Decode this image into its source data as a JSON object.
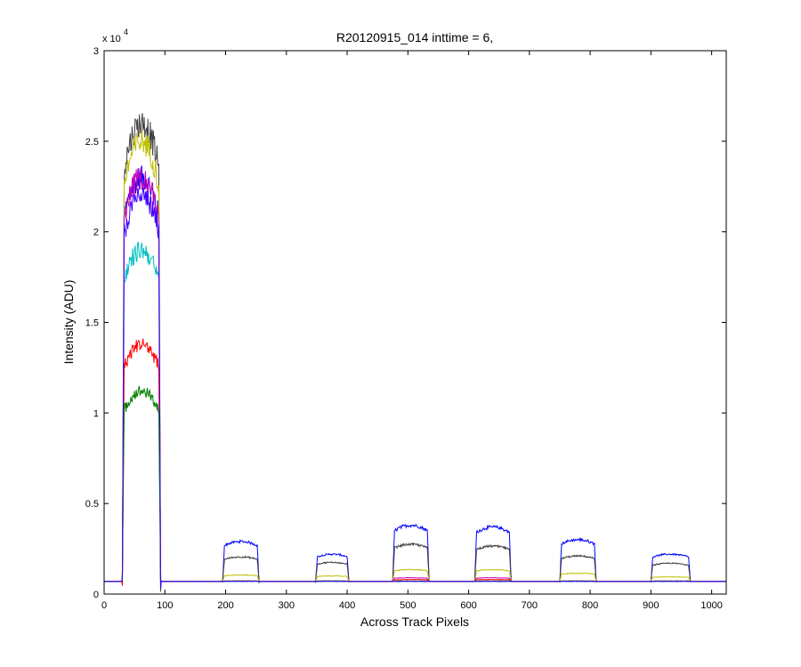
{
  "chart_data": {
    "type": "line",
    "title": "R20120915_014 inttime = 6,",
    "xlabel": "Across Track Pixels",
    "ylabel": "Intensity (ADU)",
    "y_exponent_label": "x 10",
    "y_exponent_power": "4",
    "xlim": [
      0,
      1024
    ],
    "ylim": [
      0,
      30000
    ],
    "xticks": [
      0,
      100,
      200,
      300,
      400,
      500,
      600,
      700,
      800,
      900,
      1000
    ],
    "xtick_labels": [
      "0",
      "100",
      "200",
      "300",
      "400",
      "500",
      "600",
      "700",
      "800",
      "900",
      "1000"
    ],
    "yticks": [
      0,
      5000,
      10000,
      15000,
      20000,
      25000,
      30000
    ],
    "ytick_labels": [
      "0",
      "0.5",
      "1",
      "1.5",
      "2",
      "2.5",
      "3"
    ],
    "grid": false,
    "legend": "none",
    "baseline": 700,
    "segments": [
      [
        30,
        93
      ],
      [
        195,
        255
      ],
      [
        348,
        403
      ],
      [
        475,
        535
      ],
      [
        610,
        670
      ],
      [
        750,
        810
      ],
      [
        900,
        965
      ]
    ],
    "series": [
      {
        "color": "#0000ff",
        "peaks": [
          23000,
          2900,
          2200,
          3800,
          3700,
          3000,
          2200
        ]
      },
      {
        "color": "#404040",
        "peaks": [
          26000,
          2050,
          1750,
          2750,
          2650,
          2100,
          1700
        ]
      },
      {
        "color": "#bfbf00",
        "peaks": [
          25000,
          1050,
          1000,
          1350,
          1350,
          1150,
          950
        ]
      },
      {
        "color": "#00bfbf",
        "peaks": [
          19000,
          700,
          700,
          700,
          700,
          700,
          700
        ]
      },
      {
        "color": "#bf00bf",
        "peaks": [
          23000,
          720,
          720,
          900,
          900,
          720,
          720
        ]
      },
      {
        "color": "#ff0000",
        "peaks": [
          13800,
          720,
          720,
          800,
          800,
          720,
          720
        ]
      },
      {
        "color": "#008000",
        "peaks": [
          11200,
          720,
          720,
          720,
          720,
          720,
          720
        ]
      },
      {
        "color": "#3f00ff",
        "peaks": [
          22000,
          700,
          700,
          700,
          700,
          700,
          700
        ]
      }
    ]
  }
}
